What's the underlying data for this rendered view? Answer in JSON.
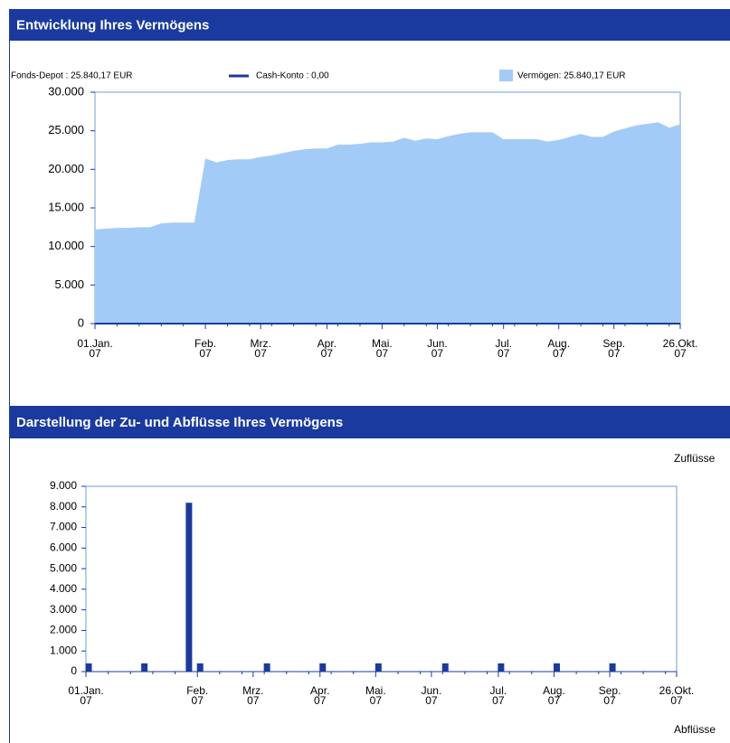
{
  "chart_data": [
    {
      "type": "area",
      "title": "Entwicklung Ihres Vermögens",
      "legend": [
        {
          "label": "Fonds-Depot : 25.840,17 EUR",
          "marker": "none"
        },
        {
          "label": "Cash-Konto : 0,00",
          "marker": "line",
          "color": "#1a3aa0"
        },
        {
          "label": "Vermögen: 25.840,17 EUR",
          "marker": "area",
          "color": "#a3cbf7"
        }
      ],
      "color": "#a3cbf7",
      "categories": [
        "01.Jan.\n07",
        null,
        null,
        null,
        null,
        null,
        null,
        null,
        null,
        null,
        "Feb.\n07",
        null,
        null,
        null,
        null,
        "Mrz.\n07",
        null,
        null,
        null,
        null,
        null,
        "Apr.\n07",
        null,
        null,
        null,
        null,
        "Mai.\n07",
        null,
        null,
        null,
        null,
        "Jun.\n07",
        null,
        null,
        null,
        null,
        null,
        "Jul.\n07",
        null,
        null,
        null,
        null,
        "Aug.\n07",
        null,
        null,
        null,
        null,
        "Sep.\n07",
        null,
        null,
        null,
        null,
        null,
        "26.Okt.\n07"
      ],
      "values": [
        12200,
        12300,
        12400,
        12400,
        12500,
        12500,
        13000,
        13100,
        13100,
        13100,
        21400,
        20900,
        21200,
        21300,
        21300,
        21600,
        21800,
        22100,
        22400,
        22600,
        22700,
        22700,
        23200,
        23200,
        23300,
        23500,
        23500,
        23600,
        24100,
        23700,
        24000,
        23900,
        24300,
        24600,
        24800,
        24800,
        24800,
        23900,
        23900,
        23900,
        23900,
        23600,
        23800,
        24200,
        24600,
        24200,
        24200,
        24900,
        25300,
        25700,
        25900,
        26100,
        25400,
        25840
      ],
      "ylim": [
        0,
        30000
      ],
      "yticks": [
        0,
        {
          "value": 5000,
          "label": "5.000"
        },
        {
          "value": 10000,
          "label": "10.000"
        },
        {
          "value": 15000,
          "label": "15.000"
        },
        {
          "value": 20000,
          "label": "20.000"
        },
        {
          "value": 25000,
          "label": "25.000"
        },
        {
          "value": 30000,
          "label": "30.000"
        }
      ]
    },
    {
      "type": "bar",
      "title": "Darstellung der Zu- und Abflüsse Ihres Vermögens",
      "annotations": [
        "Zuflüsse",
        "Abflüsse"
      ],
      "color": "#1a3aa0",
      "categories": [
        "01.Jan.\n07",
        null,
        null,
        null,
        null,
        null,
        null,
        null,
        null,
        null,
        "Feb.\n07",
        null,
        null,
        null,
        null,
        "Mrz.\n07",
        null,
        null,
        null,
        null,
        null,
        "Apr.\n07",
        null,
        null,
        null,
        null,
        "Mai.\n07",
        null,
        null,
        null,
        null,
        "Jun.\n07",
        null,
        null,
        null,
        null,
        null,
        "Jul.\n07",
        null,
        null,
        null,
        null,
        "Aug.\n07",
        null,
        null,
        null,
        null,
        "Sep.\n07",
        null,
        null,
        null,
        null,
        null,
        "26.Okt.\n07"
      ],
      "values": [
        400,
        null,
        null,
        null,
        null,
        400,
        null,
        null,
        null,
        8200,
        400,
        null,
        null,
        null,
        null,
        null,
        400,
        null,
        null,
        null,
        null,
        400,
        null,
        null,
        null,
        null,
        400,
        null,
        null,
        null,
        null,
        null,
        400,
        null,
        null,
        null,
        null,
        400,
        null,
        null,
        null,
        null,
        400,
        null,
        null,
        null,
        null,
        400,
        null,
        null,
        null,
        null,
        null,
        null
      ],
      "ylim": [
        0,
        9000
      ],
      "yticks": [
        0,
        {
          "value": 1000,
          "label": "1.000"
        },
        {
          "value": 2000,
          "label": "2.000"
        },
        {
          "value": 3000,
          "label": "3.000"
        },
        {
          "value": 4000,
          "label": "4.000"
        },
        {
          "value": 5000,
          "label": "5.000"
        },
        {
          "value": 6000,
          "label": "6.000"
        },
        {
          "value": 7000,
          "label": "7.000"
        },
        {
          "value": 8000,
          "label": "8.000"
        },
        {
          "value": 9000,
          "label": "9.000"
        }
      ]
    }
  ]
}
